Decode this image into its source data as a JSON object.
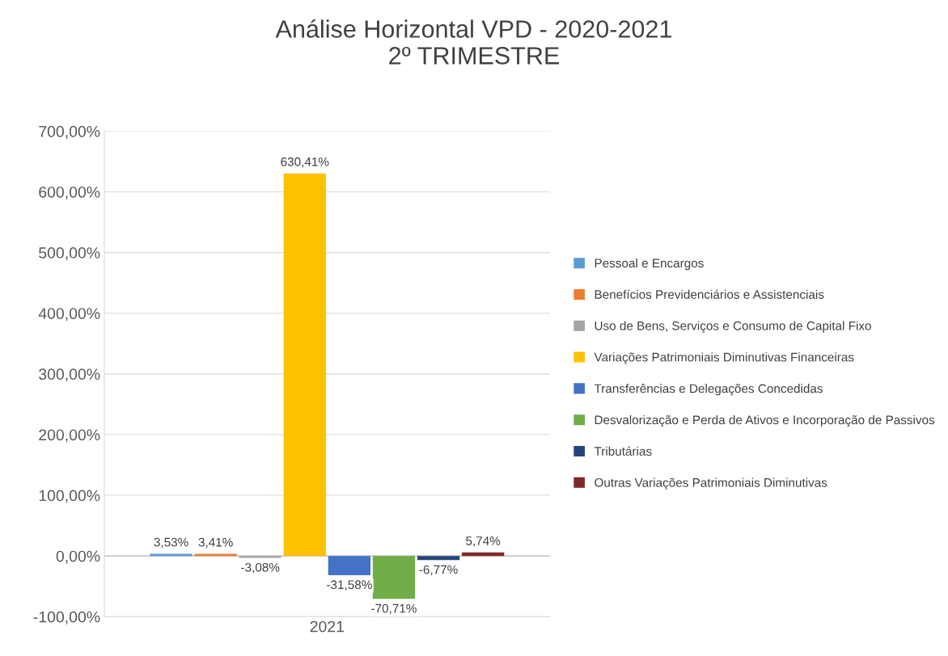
{
  "chart_data": {
    "type": "bar",
    "title": "Análise Horizontal VPD - 2020-2021\n2º TRIMESTRE",
    "categories": [
      "2021"
    ],
    "series": [
      {
        "name": "Pessoal e Encargos",
        "color": "#5b9bd5",
        "values": [
          3.53
        ],
        "value_labels": [
          "3,53%"
        ]
      },
      {
        "name": "Benefícios Previdenciários e Assistenciais",
        "color": "#ed7d31",
        "values": [
          3.41
        ],
        "value_labels": [
          "3,41%"
        ]
      },
      {
        "name": "Uso de Bens, Serviços e Consumo de Capital Fixo",
        "color": "#a5a5a5",
        "values": [
          -3.08
        ],
        "value_labels": [
          "-3,08%"
        ]
      },
      {
        "name": "Variações Patrimoniais Diminutivas Financeiras",
        "color": "#ffc000",
        "values": [
          630.41
        ],
        "value_labels": [
          "630,41%"
        ]
      },
      {
        "name": "Transferências e Delegações Concedidas",
        "color": "#4472c4",
        "values": [
          -31.58
        ],
        "value_labels": [
          "-31,58%"
        ]
      },
      {
        "name": "Desvalorização e Perda de Ativos e Incorporação de Passivos",
        "color": "#70ad47",
        "values": [
          -70.71
        ],
        "value_labels": [
          "-70,71%"
        ]
      },
      {
        "name": "Tributárias",
        "color": "#264478",
        "values": [
          -6.77
        ],
        "value_labels": [
          "-6,77%"
        ]
      },
      {
        "name": "Outras Variações Patrimoniais Diminutivas",
        "color": "#7f2a2a",
        "values": [
          5.74
        ],
        "value_labels": [
          "5,74%"
        ]
      }
    ],
    "ylim": [
      -100,
      700
    ],
    "yticks": [
      {
        "value": -100,
        "label": "-100,00%"
      },
      {
        "value": 0,
        "label": "0,00%"
      },
      {
        "value": 100,
        "label": "100,00%"
      },
      {
        "value": 200,
        "label": "200,00%"
      },
      {
        "value": 300,
        "label": "300,00%"
      },
      {
        "value": 400,
        "label": "400,00%"
      },
      {
        "value": 500,
        "label": "500,00%"
      },
      {
        "value": 600,
        "label": "600,00%"
      },
      {
        "value": 700,
        "label": "700,00%"
      }
    ],
    "grid": "y",
    "legend": "right"
  }
}
